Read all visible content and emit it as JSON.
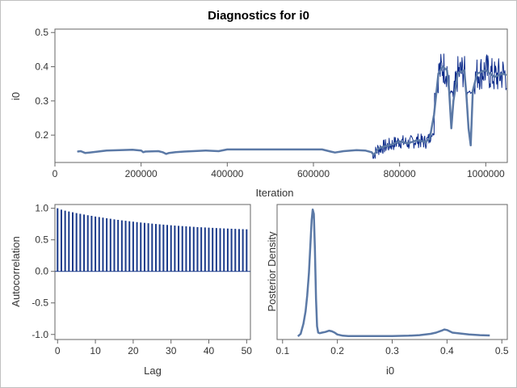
{
  "title": "Diagnostics for i0",
  "colors": {
    "trace_dark": "#0b2a8a",
    "trace_light": "#5b79a6",
    "acf_bar": "#1a3a8a",
    "density": "#5b79a6",
    "frame": "#666666",
    "border": "#c0c0c0"
  },
  "chart_data": [
    {
      "type": "line",
      "name": "trace",
      "xlabel": "Iteration",
      "ylabel": "i0",
      "xlim": [
        0,
        1050000
      ],
      "ylim": [
        0.12,
        0.51
      ],
      "xticks": [
        0,
        200000,
        400000,
        600000,
        800000,
        1000000
      ],
      "xtick_labels": [
        "0",
        "200000",
        "400000",
        "600000",
        "800000",
        "1000000"
      ],
      "yticks": [
        0.2,
        0.3,
        0.4,
        0.5
      ],
      "ytick_labels": [
        "0.2",
        "0.3",
        "0.4",
        "0.5"
      ],
      "smooth": {
        "x": [
          52000,
          60000,
          70000,
          80000,
          100000,
          120000,
          150000,
          180000,
          200000,
          205000,
          210000,
          240000,
          250000,
          258000,
          265000,
          280000,
          300000,
          350000,
          380000,
          400000,
          420000,
          500000,
          600000,
          620000,
          640000,
          650000,
          670000,
          700000,
          720000,
          735000,
          740000,
          745000,
          750000,
          760000,
          780000,
          800000,
          820000,
          840000,
          860000,
          870000,
          880000,
          890000,
          900000,
          910000,
          915000,
          920000,
          925000,
          935000,
          950000,
          955000,
          960000,
          965000,
          970000,
          980000,
          1000000,
          1020000,
          1040000,
          1048000
        ],
        "y": [
          0.152,
          0.153,
          0.148,
          0.149,
          0.152,
          0.155,
          0.156,
          0.157,
          0.155,
          0.15,
          0.152,
          0.153,
          0.15,
          0.145,
          0.148,
          0.15,
          0.152,
          0.155,
          0.153,
          0.158,
          0.158,
          0.158,
          0.158,
          0.158,
          0.152,
          0.149,
          0.153,
          0.156,
          0.155,
          0.15,
          0.142,
          0.15,
          0.16,
          0.165,
          0.172,
          0.182,
          0.176,
          0.185,
          0.18,
          0.19,
          0.26,
          0.38,
          0.4,
          0.39,
          0.33,
          0.22,
          0.3,
          0.38,
          0.39,
          0.32,
          0.22,
          0.17,
          0.33,
          0.38,
          0.39,
          0.37,
          0.38,
          0.375
        ]
      },
      "volatile_segments": [
        {
          "start": 735000,
          "end": 880000,
          "low": 0.145,
          "high": 0.205
        },
        {
          "start": 880000,
          "end": 1048000,
          "low": 0.32,
          "high": 0.47
        }
      ]
    },
    {
      "type": "bar",
      "name": "autocorrelation",
      "xlabel": "Lag",
      "ylabel": "Autocorrelation",
      "xlim": [
        -0.7,
        51
      ],
      "ylim": [
        -1.08,
        1.06
      ],
      "xticks": [
        0,
        10,
        20,
        30,
        40,
        50
      ],
      "xtick_labels": [
        "0",
        "10",
        "20",
        "30",
        "40",
        "50"
      ],
      "yticks": [
        -1.0,
        -0.5,
        0.0,
        0.5,
        1.0
      ],
      "ytick_labels": [
        "-1.0",
        "-0.5",
        "0.0",
        "0.5",
        "1.0"
      ],
      "lags": [
        0,
        1,
        2,
        3,
        4,
        5,
        6,
        7,
        8,
        9,
        10,
        11,
        12,
        13,
        14,
        15,
        16,
        17,
        18,
        19,
        20,
        21,
        22,
        23,
        24,
        25,
        26,
        27,
        28,
        29,
        30,
        31,
        32,
        33,
        34,
        35,
        36,
        37,
        38,
        39,
        40,
        41,
        42,
        43,
        44,
        45,
        46,
        47,
        48,
        49,
        50
      ],
      "values": [
        1.0,
        0.978,
        0.963,
        0.949,
        0.937,
        0.924,
        0.913,
        0.901,
        0.891,
        0.88,
        0.87,
        0.861,
        0.851,
        0.842,
        0.834,
        0.825,
        0.817,
        0.809,
        0.802,
        0.795,
        0.788,
        0.781,
        0.775,
        0.769,
        0.763,
        0.757,
        0.751,
        0.746,
        0.741,
        0.736,
        0.731,
        0.726,
        0.722,
        0.718,
        0.714,
        0.71,
        0.706,
        0.702,
        0.699,
        0.696,
        0.693,
        0.69,
        0.687,
        0.684,
        0.681,
        0.679,
        0.676,
        0.674,
        0.671,
        0.669,
        0.667
      ]
    },
    {
      "type": "line",
      "name": "density",
      "xlabel": "i0",
      "ylabel": "Posterior Density",
      "xlim": [
        0.09,
        0.51
      ],
      "ylim": [
        -0.5,
        21
      ],
      "xticks": [
        0.1,
        0.2,
        0.3,
        0.4,
        0.5
      ],
      "xtick_labels": [
        "0.1",
        "0.2",
        "0.3",
        "0.4",
        "0.5"
      ],
      "x": [
        0.128,
        0.133,
        0.138,
        0.142,
        0.145,
        0.148,
        0.151,
        0.153,
        0.155,
        0.157,
        0.159,
        0.161,
        0.163,
        0.165,
        0.168,
        0.172,
        0.178,
        0.185,
        0.19,
        0.195,
        0.2,
        0.21,
        0.22,
        0.25,
        0.3,
        0.33,
        0.35,
        0.37,
        0.38,
        0.39,
        0.395,
        0.4,
        0.41,
        0.42,
        0.44,
        0.46,
        0.478
      ],
      "y": [
        0.0,
        0.4,
        2.0,
        4.0,
        6.5,
        10.0,
        15.0,
        18.5,
        20.2,
        19.5,
        14.0,
        6.0,
        1.6,
        0.6,
        0.5,
        0.6,
        0.7,
        0.9,
        0.8,
        0.6,
        0.3,
        0.1,
        0.05,
        0.05,
        0.05,
        0.1,
        0.2,
        0.4,
        0.6,
        0.9,
        1.1,
        1.0,
        0.6,
        0.5,
        0.3,
        0.2,
        0.15
      ]
    }
  ]
}
